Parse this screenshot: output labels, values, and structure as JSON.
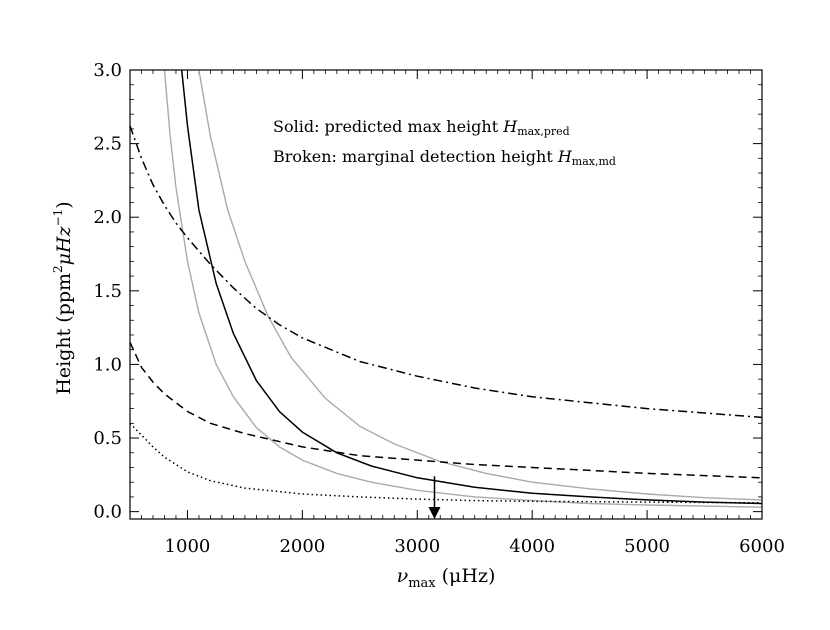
{
  "chart_data": {
    "type": "line",
    "xlabel": {
      "sym": "ν",
      "sub": "max",
      "unit": "(μHz)"
    },
    "ylabel": {
      "text": "Height (ppm",
      "sup1": "2",
      "mid": "μHz",
      "sup2": "−1",
      "end": ")"
    },
    "xlim": [
      500,
      6000
    ],
    "ylim": [
      -0.05,
      3.0
    ],
    "xticks": [
      1000,
      2000,
      3000,
      4000,
      5000,
      6000
    ],
    "xtick_labels": [
      "1000",
      "2000",
      "3000",
      "4000",
      "5000",
      "6000"
    ],
    "yticks": [
      0.0,
      0.5,
      1.0,
      1.5,
      2.0,
      2.5,
      3.0
    ],
    "ytick_labels": [
      "0.0",
      "0.5",
      "1.0",
      "1.5",
      "2.0",
      "2.5",
      "3.0"
    ],
    "legend": {
      "line1_prefix": "Solid: predicted max height ",
      "line1_sym": "H",
      "line1_sub": "max,pred",
      "line2_prefix": "Broken: marginal detection height ",
      "line2_sym": "H",
      "line2_sub": "max,md"
    },
    "series": [
      {
        "name": "predicted-max-height",
        "style": "solid",
        "color": "#000000",
        "x": [
          950,
          1000,
          1100,
          1250,
          1400,
          1600,
          1800,
          2000,
          2300,
          2600,
          3000,
          3500,
          4000,
          4500,
          5000,
          5500,
          6000
        ],
        "values": [
          3.0,
          2.62,
          2.05,
          1.55,
          1.21,
          0.89,
          0.68,
          0.54,
          0.4,
          0.31,
          0.23,
          0.165,
          0.125,
          0.1,
          0.08,
          0.065,
          0.055
        ]
      },
      {
        "name": "predicted-upper-bound",
        "style": "solid",
        "color": "#aaaaaa",
        "x": [
          1100,
          1200,
          1350,
          1500,
          1700,
          1900,
          2200,
          2500,
          2800,
          3200,
          3600,
          4000,
          4500,
          5000,
          5500,
          6000
        ],
        "values": [
          3.0,
          2.55,
          2.05,
          1.7,
          1.33,
          1.05,
          0.77,
          0.58,
          0.46,
          0.34,
          0.26,
          0.2,
          0.155,
          0.12,
          0.095,
          0.08
        ]
      },
      {
        "name": "predicted-lower-bound",
        "style": "solid",
        "color": "#aaaaaa",
        "x": [
          800,
          850,
          900,
          1000,
          1100,
          1250,
          1400,
          1600,
          1800,
          2000,
          2300,
          2600,
          3000,
          3500,
          4000,
          4500,
          5000,
          6000
        ],
        "values": [
          3.0,
          2.55,
          2.2,
          1.7,
          1.35,
          1.0,
          0.78,
          0.57,
          0.44,
          0.35,
          0.26,
          0.2,
          0.145,
          0.1,
          0.075,
          0.055,
          0.045,
          0.03
        ]
      },
      {
        "name": "marginal-detection-high",
        "style": "dashdot",
        "color": "#000000",
        "x": [
          500,
          600,
          700,
          800,
          900,
          1000,
          1200,
          1400,
          1600,
          1800,
          2000,
          2500,
          3000,
          3500,
          4000,
          4500,
          5000,
          5500,
          6000
        ],
        "values": [
          2.62,
          2.4,
          2.22,
          2.08,
          1.96,
          1.86,
          1.68,
          1.52,
          1.38,
          1.27,
          1.18,
          1.02,
          0.92,
          0.84,
          0.78,
          0.74,
          0.7,
          0.67,
          0.64
        ]
      },
      {
        "name": "marginal-detection-mid",
        "style": "dashed",
        "color": "#000000",
        "x": [
          500,
          600,
          700,
          800,
          1000,
          1200,
          1500,
          2000,
          2500,
          3000,
          3500,
          4000,
          4500,
          5000,
          5500,
          6000
        ],
        "values": [
          1.15,
          0.98,
          0.88,
          0.8,
          0.68,
          0.6,
          0.53,
          0.44,
          0.38,
          0.35,
          0.32,
          0.3,
          0.28,
          0.26,
          0.245,
          0.23
        ]
      },
      {
        "name": "marginal-detection-low",
        "style": "dotted",
        "color": "#000000",
        "x": [
          500,
          600,
          700,
          800,
          1000,
          1200,
          1500,
          2000,
          2500,
          3000,
          3500,
          4000,
          5000,
          6000
        ],
        "values": [
          0.6,
          0.52,
          0.44,
          0.37,
          0.27,
          0.21,
          0.16,
          0.12,
          0.1,
          0.085,
          0.075,
          0.07,
          0.065,
          0.06
        ]
      }
    ],
    "marker": {
      "name": "upper-limit-arrow",
      "x": 3150,
      "y_from": 0.24,
      "y_to": -0.05
    }
  }
}
